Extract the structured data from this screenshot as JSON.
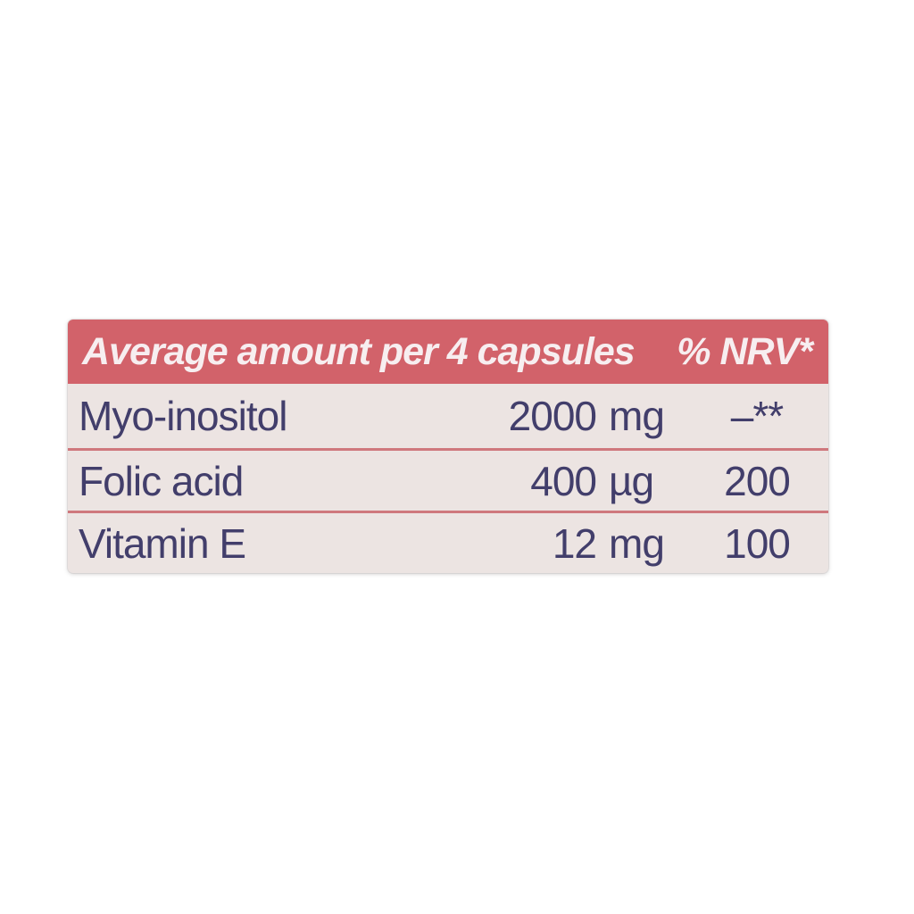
{
  "table": {
    "header": {
      "amount_label": "Average amount per 4 capsules",
      "nrv_label": "% NRV*"
    },
    "rows": [
      {
        "name": "Myo-inositol",
        "value": "2000",
        "unit": "mg",
        "nrv": "–**"
      },
      {
        "name": "Folic acid",
        "value": "400",
        "unit": "µg",
        "nrv": "200"
      },
      {
        "name": "Vitamin E",
        "value": "12",
        "unit": "mg",
        "nrv": "100"
      }
    ],
    "colors": {
      "header_bg": "#d2626a",
      "header_text": "#f7eef0",
      "row_bg": "#ece4e2",
      "row_text": "#423e6b",
      "separator": "#cf787d",
      "page_bg": "#ffffff"
    }
  }
}
